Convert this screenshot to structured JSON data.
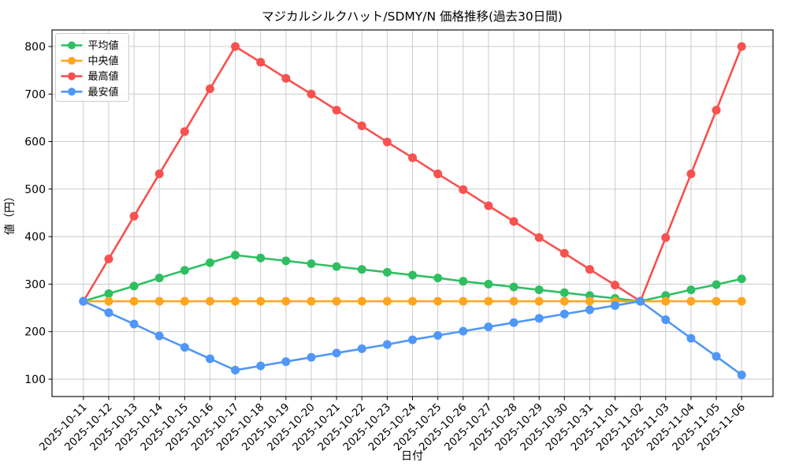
{
  "figure": {
    "background": "#ffffff",
    "grid_color": "#c6c6c6",
    "spine_color": "#000000",
    "legend_border_color": "#cccccc"
  },
  "chart_data": {
    "type": "line",
    "title": "マジカルシルクハット/SDMY/N 価格推移(過去30日間)",
    "xlabel": "日付",
    "ylabel": "値（円）",
    "x": [
      "2025-10-11",
      "2025-10-12",
      "2025-10-13",
      "2025-10-14",
      "2025-10-15",
      "2025-10-16",
      "2025-10-17",
      "2025-10-18",
      "2025-10-19",
      "2025-10-20",
      "2025-10-21",
      "2025-10-22",
      "2025-10-23",
      "2025-10-24",
      "2025-10-25",
      "2025-10-26",
      "2025-10-27",
      "2025-10-28",
      "2025-10-29",
      "2025-10-30",
      "2025-10-31",
      "2025-11-01",
      "2025-11-02",
      "2025-11-03",
      "2025-11-04",
      "2025-11-05",
      "2025-11-06"
    ],
    "series": [
      {
        "key": "average",
        "name": "平均値",
        "color": "#2fbf62",
        "values": [
          264,
          280,
          296,
          313,
          329,
          345,
          361,
          355,
          349,
          343,
          337,
          331,
          325,
          319,
          313,
          306,
          300,
          294,
          288,
          282,
          276,
          270,
          264,
          276,
          288,
          299,
          311
        ]
      },
      {
        "key": "median",
        "name": "中央値",
        "color": "#ffa51e",
        "values": [
          264,
          264,
          264,
          264,
          264,
          264,
          264,
          264,
          264,
          264,
          264,
          264,
          264,
          264,
          264,
          264,
          264,
          264,
          264,
          264,
          264,
          264,
          264,
          264,
          264,
          264,
          264
        ]
      },
      {
        "key": "highest",
        "name": "最高値",
        "color": "#f8514f",
        "values": [
          264,
          353,
          443,
          532,
          621,
          711,
          800,
          767,
          733,
          700,
          666,
          633,
          599,
          566,
          532,
          499,
          465,
          432,
          398,
          365,
          331,
          298,
          264,
          398,
          532,
          666,
          800
        ]
      },
      {
        "key": "lowest",
        "name": "最安値",
        "color": "#4f97f8",
        "values": [
          264,
          240,
          216,
          191,
          167,
          143,
          119,
          128,
          137,
          146,
          155,
          164,
          173,
          183,
          192,
          201,
          210,
          219,
          228,
          237,
          246,
          255,
          264,
          225,
          186,
          148,
          109
        ]
      }
    ],
    "ylim": [
      63.5,
      834.8
    ],
    "yticks": [
      100,
      200,
      300,
      400,
      500,
      600,
      700,
      800
    ],
    "grid": true,
    "legend_position": "upper left",
    "marker": "circle",
    "x_tick_rotation": 45
  }
}
